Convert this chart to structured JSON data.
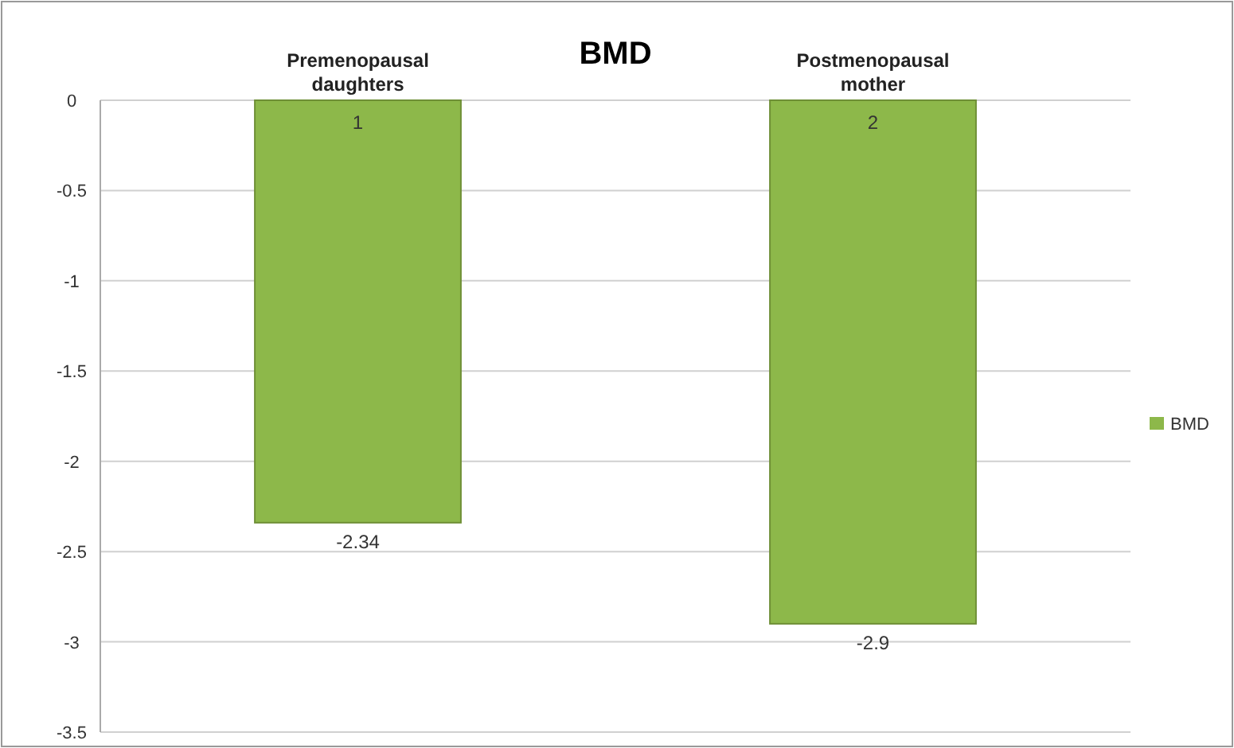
{
  "chart_data": {
    "type": "bar",
    "title": "BMD",
    "categories": [
      "1",
      "2"
    ],
    "series": [
      {
        "name": "BMD",
        "color": "#8db84a",
        "values": [
          -2.34,
          -2.9
        ]
      }
    ],
    "ylim": [
      -3.5,
      0
    ],
    "yticks": [
      0,
      -0.5,
      -1,
      -1.5,
      -2,
      -2.5,
      -3,
      -3.5
    ],
    "grid": "y",
    "legend": "right",
    "data_labels": true,
    "annotations": [
      {
        "text": "Premenopausal daughters",
        "x": "1",
        "y": 0
      },
      {
        "text": "Postmenopausal mother",
        "x": "2",
        "y": 0
      }
    ]
  }
}
